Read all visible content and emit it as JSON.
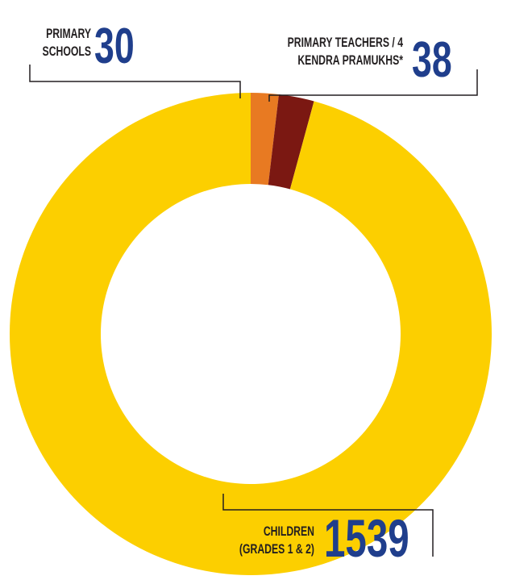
{
  "chart_data": {
    "type": "donut",
    "categories": [
      [
        "PRIMARY",
        "SCHOOLS"
      ],
      [
        "PRIMARY TEACHERS / 4",
        "KENDRA PRAMUKHS*"
      ],
      [
        "CHILDREN",
        "(GRADES 1 & 2)"
      ]
    ],
    "values": [
      30,
      38,
      1539
    ],
    "colors": [
      "#e87a22",
      "#7b1812",
      "#fccf00"
    ]
  }
}
